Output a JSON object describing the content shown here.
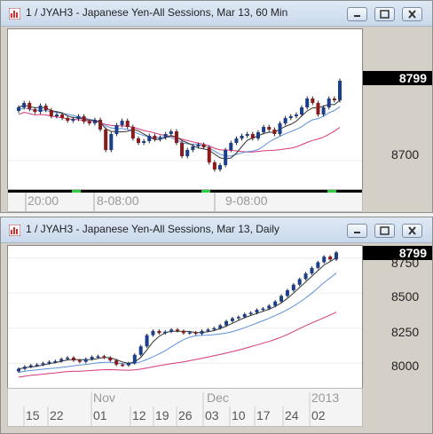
{
  "windows": [
    {
      "title": "1 / JYAH3 - Japanese Yen-All Sessions, Mar 13, 60 Min",
      "last_price": "8799",
      "price_ticks": [
        "8700"
      ],
      "time_labels": [
        "20:00",
        "8-08:00",
        "9-08:00"
      ],
      "colors": {
        "up": "#1c3f8c",
        "down": "#8b1a1a",
        "ma_fast": "#333333",
        "ma_mid": "#5b8fd9",
        "ma_slow": "#d6367a"
      }
    },
    {
      "title": "1 / JYAH3 - Japanese Yen-All Sessions, Mar 13, Daily",
      "last_price": "8799",
      "price_ticks": [
        "8750",
        "8500",
        "8250",
        "8000"
      ],
      "month_labels": [
        "Nov",
        "Dec",
        "2013"
      ],
      "day_labels": [
        "15",
        "22",
        "01",
        "12",
        "19",
        "26",
        "03",
        "10",
        "17",
        "24",
        "02"
      ],
      "colors": {
        "up": "#1c3f8c",
        "down": "#8b1a1a",
        "ma_fast": "#333333",
        "ma_mid": "#5b8fd9",
        "ma_slow": "#d6367a"
      }
    }
  ],
  "chart_data": [
    {
      "type": "candlestick",
      "title": "1 / JYAH3 - Japanese Yen-All Sessions, Mar 13, 60 Min",
      "y_ticks": [
        8700
      ],
      "last": 8799,
      "x_labels": [
        "20:00",
        "8-08:00",
        "9-08:00"
      ],
      "closes": [
        8760,
        8765,
        8758,
        8755,
        8762,
        8757,
        8750,
        8752,
        8748,
        8745,
        8747,
        8750,
        8744,
        8742,
        8746,
        8735,
        8712,
        8730,
        8740,
        8745,
        8738,
        8725,
        8720,
        8722,
        8728,
        8724,
        8726,
        8730,
        8733,
        8720,
        8705,
        8712,
        8716,
        8718,
        8715,
        8698,
        8690,
        8695,
        8712,
        8720,
        8725,
        8728,
        8730,
        8725,
        8732,
        8738,
        8735,
        8730,
        8742,
        8748,
        8750,
        8752,
        8760,
        8770,
        8765,
        8752,
        8760,
        8770,
        8768,
        8790
      ]
    },
    {
      "type": "candlestick",
      "title": "1 / JYAH3 - Japanese Yen-All Sessions, Mar 13, Daily",
      "y_ticks": [
        8000,
        8250,
        8500,
        8750
      ],
      "last": 8799,
      "x_labels": [
        "15",
        "22",
        "01",
        "12",
        "19",
        "26",
        "03",
        "10",
        "17",
        "24",
        "02"
      ],
      "month_labels": [
        "Nov",
        "Dec",
        "2013"
      ],
      "closes": [
        7960,
        7975,
        7985,
        7990,
        8000,
        8010,
        8015,
        8030,
        8040,
        8020,
        8010,
        8030,
        8045,
        8050,
        8040,
        8020,
        7990,
        7985,
        8000,
        8060,
        8120,
        8200,
        8230,
        8215,
        8225,
        8240,
        8230,
        8215,
        8220,
        8210,
        8230,
        8240,
        8250,
        8270,
        8300,
        8320,
        8330,
        8350,
        8360,
        8380,
        8390,
        8410,
        8440,
        8480,
        8520,
        8560,
        8600,
        8640,
        8680,
        8720,
        8760,
        8740,
        8790
      ]
    }
  ]
}
